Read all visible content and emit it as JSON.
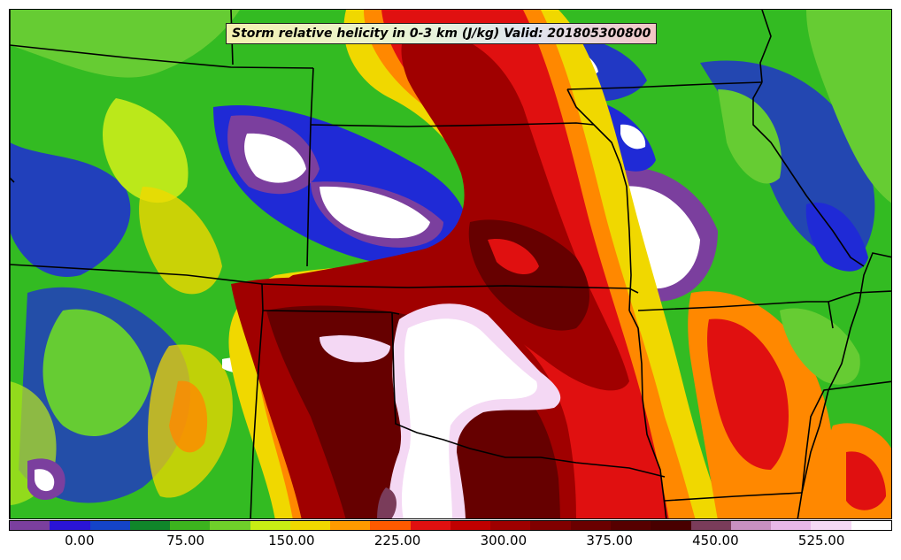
{
  "title": "Storm relative helicity in 0-3 km (J/kg) Valid: 201805300800",
  "colorbar": {
    "colors": [
      "#7b3f9e",
      "#2a14d6",
      "#1444c8",
      "#10862a",
      "#3cb41e",
      "#6fd02a",
      "#c8ee14",
      "#f0d800",
      "#ff9a00",
      "#ff5a00",
      "#e01010",
      "#c00000",
      "#9e0000",
      "#800000",
      "#6a0000",
      "#560000",
      "#480000",
      "#7a3c5a",
      "#c890c0",
      "#e8b8e8",
      "#f4d8f4",
      "#ffffff"
    ],
    "tick_labels": [
      "0.00",
      "75.00",
      "150.00",
      "225.00",
      "300.00",
      "375.00",
      "450.00",
      "525.00"
    ],
    "tick_values": [
      0,
      75,
      150,
      225,
      300,
      375,
      450,
      525
    ],
    "value_min": -50,
    "value_max": 575
  },
  "map_layers": {
    "field_colors": {
      "green": "#33bb22",
      "light_green": "#66cc33",
      "yellow_green": "#bbe81a",
      "yellow": "#f0d800",
      "orange": "#ff8800",
      "red": "#e01010",
      "dark_red": "#a00000",
      "maroon": "#660000",
      "blue": "#1f2ad6",
      "purple": "#7b3f9e",
      "pink_white": "#f4d8f4",
      "white": "#ffffff"
    },
    "boundary_color": "#000000"
  }
}
